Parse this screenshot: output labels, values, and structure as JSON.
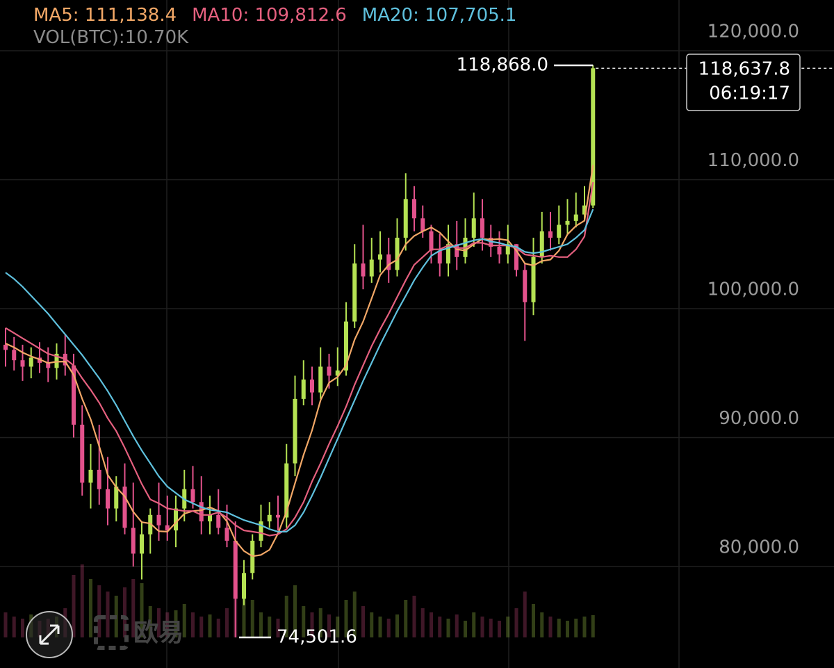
{
  "chart_data": {
    "type": "candlestick",
    "ylim": [
      72130,
      123935
    ],
    "yticks": [
      {
        "value": 120000,
        "label": "120,000.0"
      },
      {
        "value": 110000,
        "label": "110,000.0"
      },
      {
        "value": 100000,
        "label": "100,000.0"
      },
      {
        "value": 90000,
        "label": "90,000.0"
      },
      {
        "value": 80000,
        "label": "80,000.0"
      }
    ],
    "grid": true,
    "up_color": "#b5e253",
    "down_color": "#e3528c",
    "open": [
      97200,
      96800,
      96000,
      95500,
      96200,
      95800,
      95400,
      96500,
      95600,
      91000,
      86500,
      87500,
      86000,
      84500,
      86200,
      83000,
      81000,
      82500,
      84000,
      83200,
      82800,
      84500,
      86000,
      85000,
      83500,
      84000,
      83000,
      82000,
      77500,
      79500,
      82000,
      83500,
      84000,
      83800,
      88000,
      93000,
      94500,
      93500,
      95500,
      94800,
      95200,
      99000,
      103500,
      102500,
      103800,
      104200,
      103000,
      105500,
      108500,
      107000,
      106000,
      104500,
      103500,
      105000,
      104000,
      105500,
      107000,
      105500,
      104800,
      104200,
      105000,
      103000,
      100500,
      104000,
      106000,
      105500,
      106500,
      106800,
      107300,
      108000
    ],
    "high": [
      98500,
      97800,
      97200,
      97000,
      97400,
      97000,
      97300,
      98000,
      96500,
      92500,
      89500,
      91000,
      88500,
      87000,
      88000,
      86500,
      83500,
      84500,
      86500,
      85500,
      85500,
      87500,
      87800,
      87000,
      85500,
      86000,
      84800,
      83500,
      80500,
      82500,
      84800,
      85000,
      85500,
      89500,
      94800,
      96000,
      95500,
      97000,
      96500,
      97000,
      100500,
      105000,
      106500,
      105500,
      106000,
      105500,
      107000,
      110500,
      109500,
      108000,
      106500,
      105800,
      106500,
      106800,
      107000,
      109000,
      108500,
      106500,
      106000,
      106500,
      105000,
      103500,
      105500,
      107500,
      107500,
      108000,
      108500,
      109000,
      109500,
      118868
    ],
    "low": [
      95500,
      95200,
      94400,
      94600,
      95000,
      94300,
      94500,
      94800,
      90000,
      85500,
      84500,
      84800,
      83200,
      83500,
      82500,
      80000,
      79000,
      81000,
      82000,
      82000,
      81500,
      83500,
      84500,
      82500,
      82500,
      82500,
      81500,
      74501.6,
      77000,
      79000,
      81500,
      83000,
      82800,
      83000,
      87000,
      92500,
      92500,
      93000,
      93800,
      94000,
      94800,
      98500,
      101500,
      102000,
      102800,
      102000,
      102500,
      104500,
      106000,
      105500,
      103500,
      102500,
      102500,
      103000,
      103500,
      104800,
      104500,
      104000,
      103500,
      103500,
      102500,
      97500,
      99500,
      103500,
      104500,
      105000,
      105800,
      106300,
      106800,
      107800
    ],
    "close": [
      96800,
      96000,
      95500,
      96200,
      95800,
      95400,
      96500,
      95600,
      91000,
      86500,
      87500,
      86000,
      84500,
      86200,
      83000,
      81000,
      82500,
      84000,
      83200,
      82800,
      84500,
      86000,
      85000,
      83500,
      84000,
      83000,
      82000,
      77500,
      79500,
      82000,
      83500,
      84000,
      83800,
      88000,
      93000,
      94500,
      93500,
      95500,
      94800,
      95200,
      99000,
      103500,
      102500,
      103800,
      104200,
      103000,
      105500,
      108500,
      107000,
      106000,
      104500,
      103500,
      105000,
      104000,
      105500,
      107000,
      105500,
      104800,
      104200,
      105000,
      103000,
      100500,
      104000,
      106000,
      105500,
      106500,
      106800,
      107300,
      108000,
      118637.8
    ],
    "volume": [
      12,
      10,
      9,
      11,
      8,
      9,
      10,
      14,
      30,
      35,
      28,
      25,
      22,
      20,
      24,
      28,
      26,
      15,
      14,
      12,
      13,
      16,
      12,
      10,
      11,
      9,
      14,
      30,
      22,
      18,
      12,
      10,
      9,
      20,
      25,
      15,
      12,
      14,
      11,
      10,
      18,
      22,
      15,
      12,
      10,
      9,
      11,
      18,
      20,
      14,
      12,
      10,
      9,
      11,
      8,
      12,
      10,
      9,
      8,
      10,
      14,
      22,
      16,
      12,
      10,
      9,
      8,
      9,
      10,
      10.7
    ],
    "volume_label": "VOL(BTC):10.70K",
    "series": [
      {
        "name": "MA5",
        "color": "#f3a867",
        "value_label": "111,138.4",
        "values": [
          97300,
          97000,
          96600,
          96300,
          96060,
          95780,
          95880,
          95900,
          94860,
          93000,
          91420,
          89320,
          87100,
          86140,
          85440,
          84240,
          83440,
          83340,
          82740,
          82700,
          83400,
          84100,
          84300,
          84360,
          84600,
          84300,
          83500,
          82000,
          81200,
          80800,
          80900,
          81300,
          82560,
          84260,
          86460,
          88660,
          90560,
          92900,
          94260,
          94700,
          95600,
          97600,
          99000,
          100800,
          102600,
          103400,
          103800,
          105000,
          105640,
          106000,
          106300,
          105900,
          105200,
          104600,
          104500,
          105000,
          105400,
          105360,
          105400,
          105300,
          104500,
          103500,
          103340,
          103700,
          103800,
          104500,
          105760,
          106420,
          106820,
          111138.4
        ]
      },
      {
        "name": "MA10",
        "color": "#e5607f",
        "value_label": "109,812.6",
        "values": [
          98500,
          98100,
          97700,
          97300,
          96900,
          96500,
          96300,
          96100,
          95600,
          94600,
          93700,
          92700,
          91500,
          90500,
          89200,
          87800,
          86400,
          85200,
          84900,
          84500,
          84400,
          84300,
          84300,
          84000,
          84000,
          84200,
          83800,
          83200,
          82800,
          82700,
          82600,
          82400,
          82500,
          82900,
          83800,
          85000,
          86600,
          88000,
          89500,
          90900,
          92400,
          94100,
          95600,
          97100,
          98400,
          99600,
          100900,
          102200,
          103400,
          104000,
          104600,
          104600,
          104900,
          104700,
          104700,
          105100,
          105100,
          104900,
          104900,
          104900,
          104700,
          104200,
          104100,
          104000,
          104100,
          104000,
          104000,
          104600,
          105600,
          109812.6
        ]
      },
      {
        "name": "MA20",
        "color": "#5fc1de",
        "value_label": "107,705.1",
        "values": [
          102800,
          102300,
          101700,
          101000,
          100300,
          99600,
          98800,
          98000,
          97200,
          96400,
          95500,
          94600,
          93600,
          92500,
          91300,
          90100,
          89000,
          88000,
          87000,
          86200,
          85700,
          85200,
          84900,
          84600,
          84400,
          84300,
          84200,
          83900,
          83600,
          83400,
          83200,
          82900,
          82700,
          82700,
          83200,
          84200,
          85500,
          86900,
          88400,
          89900,
          91400,
          92900,
          94400,
          95800,
          97200,
          98500,
          99800,
          101000,
          102200,
          103200,
          104100,
          104500,
          104700,
          104900,
          105100,
          105300,
          105400,
          105200,
          105100,
          104900,
          104800,
          104400,
          104300,
          104400,
          104600,
          104800,
          105000,
          105500,
          106100,
          107705.1
        ]
      }
    ],
    "high_marker": {
      "value": 118868,
      "label": "118,868.0"
    },
    "low_marker": {
      "value": 74501.6,
      "label": "74,501.6"
    },
    "last_price": {
      "value": 118637.8,
      "label": "118,637.8",
      "countdown": "06:19:17"
    },
    "watermark": "欧易"
  }
}
